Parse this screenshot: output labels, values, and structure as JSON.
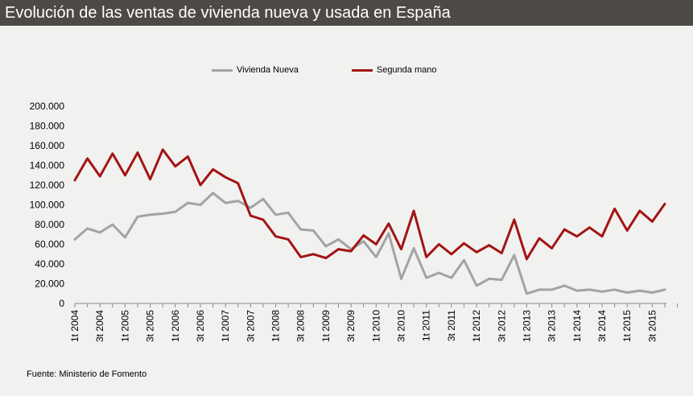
{
  "title": "Evolución de las ventas de vivienda nueva y usada en España",
  "source": "Fuente: Ministerio de Fomento",
  "colors": {
    "nueva": "#a3a3a3",
    "segunda": "#a31414"
  },
  "chart_data": {
    "type": "line",
    "title": "Evolución de las ventas de vivienda nueva y usada en España",
    "xlabel": "",
    "ylabel": "",
    "ylim": [
      0,
      200000
    ],
    "yticks": [
      "0",
      "20.000",
      "40.000",
      "60.000",
      "80.000",
      "100.000",
      "120.000",
      "140.000",
      "160.000",
      "180.000",
      "200.000"
    ],
    "x": [
      "1t 2004",
      "2t 2004",
      "3t 2004",
      "4t 2004",
      "1t 2005",
      "2t 2005",
      "3t 2005",
      "4t 2005",
      "1t 2006",
      "2t 2006",
      "3t 2006",
      "4t 2006",
      "1t 2007",
      "2t 2007",
      "3t 2007",
      "4t 2007",
      "1t 2008",
      "2t 2008",
      "3t 2008",
      "4t 2008",
      "1t 2009",
      "2t 2009",
      "3t 2009",
      "4t 2009",
      "1t 2010",
      "2t 2010",
      "3t 2010",
      "4t 2010",
      "1t 2011",
      "2t 2011",
      "3t 2011",
      "4t 2011",
      "1t 2012",
      "2t 2012",
      "3t 2012",
      "4t 2012",
      "1t 2013",
      "2t 2013",
      "3t 2013",
      "4t 2013",
      "1t 2014",
      "2t 2014",
      "3t 2014",
      "4t 2014",
      "1t 2015",
      "2t 2015",
      "3t 2015",
      "4t 2015"
    ],
    "xtick_labels": [
      "1t 2004",
      "3t 2004",
      "1t 2005",
      "3t 2005",
      "1t 2006",
      "3t 2006",
      "1t 2007",
      "3t 2007",
      "1t 2008",
      "3t 2008",
      "1t 2009",
      "3t 2009",
      "1t 2010",
      "3t 2010",
      "1t 2011",
      "3t 2011",
      "1t 2012",
      "3t 2012",
      "1t 2013",
      "3t 2013",
      "1t 2014",
      "3t 2014",
      "1t 2015",
      "3t 2015"
    ],
    "legend_position": "top",
    "series": [
      {
        "name": "Vivienda Nueva",
        "values": [
          65000,
          76000,
          72000,
          80000,
          67000,
          88000,
          90000,
          91000,
          93000,
          102000,
          100000,
          112000,
          102000,
          104000,
          97000,
          106000,
          90000,
          92000,
          75000,
          74000,
          58000,
          65000,
          55000,
          63000,
          47000,
          71000,
          25000,
          56000,
          26000,
          31000,
          26000,
          44000,
          18000,
          25000,
          24000,
          49000,
          10000,
          14000,
          14000,
          18000,
          13000,
          14000,
          12000,
          14000,
          11000,
          13000,
          11000,
          14000
        ]
      },
      {
        "name": "Segunda mano",
        "values": [
          125000,
          147000,
          129000,
          152000,
          130000,
          153000,
          126000,
          156000,
          139000,
          149000,
          120000,
          136000,
          128000,
          122000,
          89000,
          85000,
          68000,
          65000,
          47000,
          50000,
          46000,
          55000,
          53000,
          69000,
          60000,
          81000,
          55000,
          94000,
          47000,
          60000,
          50000,
          61000,
          52000,
          59000,
          51000,
          85000,
          45000,
          66000,
          56000,
          75000,
          68000,
          77000,
          68000,
          96000,
          74000,
          94000,
          83000,
          101000
        ]
      }
    ]
  }
}
